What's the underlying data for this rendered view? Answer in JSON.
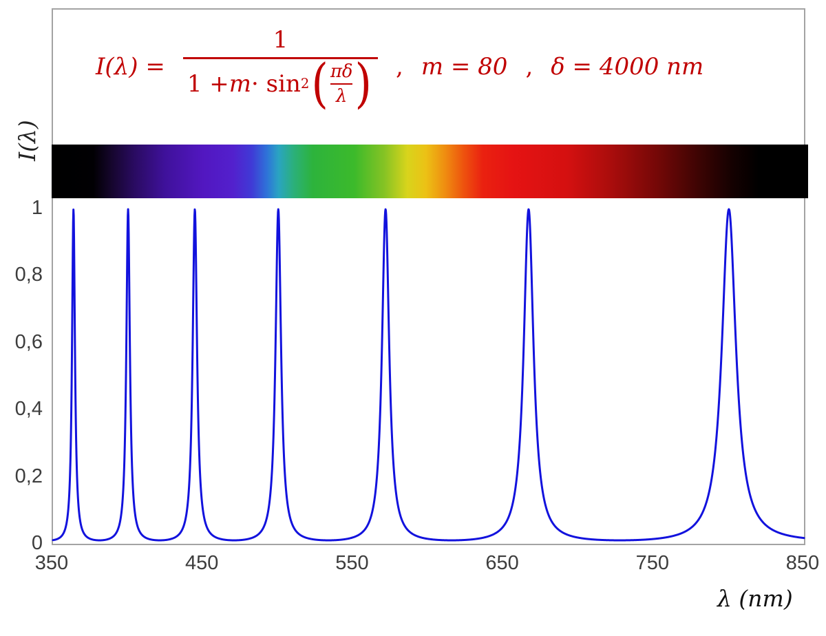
{
  "figure": {
    "ylabel": "I(λ)",
    "xlabel": "λ  (nm)"
  },
  "formula": {
    "lhs": "I(λ) =",
    "numerator": "1",
    "den_1": "1 + ",
    "den_m": "m",
    "den_2": " · sin",
    "den_sup": "2",
    "lparen": "(",
    "rparen": ")",
    "inner_num": "πδ",
    "inner_den": "λ",
    "sep1": ",",
    "m_eq": "m = 80",
    "sep2": ",",
    "delta_eq": "δ = 4000 nm",
    "color": "#c00000"
  },
  "chart_data": {
    "type": "line",
    "formula_text": "I(λ) = 1 / (1 + m·sin²(πδ/λ))",
    "params": {
      "m": 80,
      "delta_nm": 4000
    },
    "x_range_nm": [
      350,
      850
    ],
    "ylim": [
      0,
      1
    ],
    "x_ticks": [
      350,
      450,
      550,
      650,
      750,
      850
    ],
    "y_ticks": [
      {
        "value": 1,
        "label": "1"
      },
      {
        "value": 0.8,
        "label": "0,8"
      },
      {
        "value": 0.6,
        "label": "0,6"
      },
      {
        "value": 0.4,
        "label": "0,4"
      },
      {
        "value": 0.2,
        "label": "0,2"
      },
      {
        "value": 0,
        "label": "0"
      }
    ],
    "xlabel": "λ  (nm)",
    "ylabel": "I(λ)",
    "grid": false,
    "legend": false,
    "curve_color": "#1212dd",
    "curve_width": 3,
    "sample_step_nm": 0.2,
    "peak_wavelengths_nm": [
      363.6,
      400,
      444.4,
      500,
      571.4,
      666.7,
      800
    ],
    "peak_value": 1,
    "min_value": 0.0123,
    "spectrum_bar": {
      "description": "visible light spectrum strip, black outside 380-780 nm",
      "gradient_stops": [
        {
          "pos": 0,
          "color": "#000000"
        },
        {
          "pos": 5.5,
          "color": "#010003"
        },
        {
          "pos": 8,
          "color": "#16062e"
        },
        {
          "pos": 11,
          "color": "#2a0b62"
        },
        {
          "pos": 15,
          "color": "#3f119b"
        },
        {
          "pos": 20,
          "color": "#5217c0"
        },
        {
          "pos": 24,
          "color": "#5320cd"
        },
        {
          "pos": 26.5,
          "color": "#3f3bd6"
        },
        {
          "pos": 28.5,
          "color": "#2e74d8"
        },
        {
          "pos": 30,
          "color": "#2aa4c2"
        },
        {
          "pos": 32,
          "color": "#2bb07a"
        },
        {
          "pos": 34.5,
          "color": "#2db33c"
        },
        {
          "pos": 40,
          "color": "#3cba2b"
        },
        {
          "pos": 44,
          "color": "#86c324"
        },
        {
          "pos": 47,
          "color": "#d8d41c"
        },
        {
          "pos": 49.5,
          "color": "#ecc115"
        },
        {
          "pos": 52,
          "color": "#ef8d10"
        },
        {
          "pos": 54.5,
          "color": "#ee520e"
        },
        {
          "pos": 57,
          "color": "#ea2110"
        },
        {
          "pos": 61,
          "color": "#e51313"
        },
        {
          "pos": 68,
          "color": "#d51010"
        },
        {
          "pos": 74,
          "color": "#a90d0c"
        },
        {
          "pos": 80,
          "color": "#750807"
        },
        {
          "pos": 85.5,
          "color": "#3d0403"
        },
        {
          "pos": 90,
          "color": "#140101"
        },
        {
          "pos": 93.5,
          "color": "#000000"
        },
        {
          "pos": 100,
          "color": "#000000"
        }
      ]
    }
  }
}
